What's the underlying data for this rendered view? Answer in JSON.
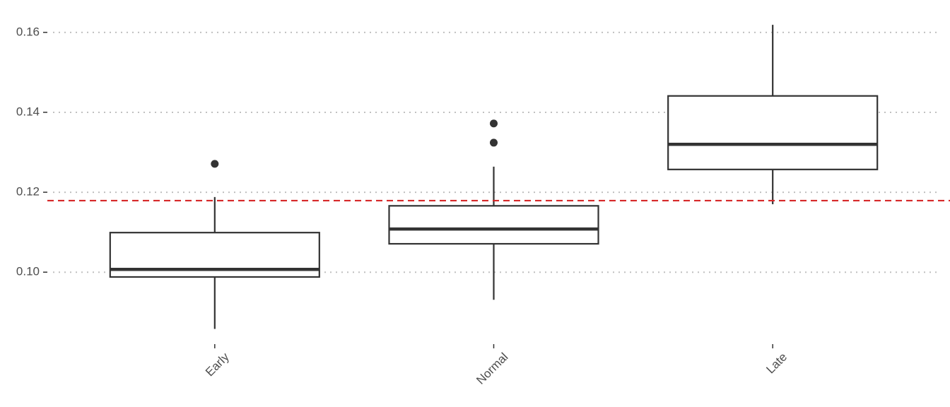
{
  "chart_data": {
    "type": "box",
    "categories": [
      "Early",
      "Normal",
      "Late"
    ],
    "boxes": [
      {
        "min": 0.0858,
        "q1": 0.0988,
        "median": 0.1007,
        "q3": 0.1099,
        "max": 0.1188,
        "outliers": [
          0.1271
        ]
      },
      {
        "min": 0.0931,
        "q1": 0.1071,
        "median": 0.1108,
        "q3": 0.1166,
        "max": 0.1264,
        "outliers": [
          0.1372,
          0.1324
        ]
      },
      {
        "min": 0.117,
        "q1": 0.1257,
        "median": 0.132,
        "q3": 0.1441,
        "max": 0.1619,
        "outliers": []
      }
    ],
    "color": "#333333",
    "reference_line": {
      "value": 0.1179,
      "color": "#d62728"
    },
    "ylim": [
      0.082,
      0.1681
    ],
    "yticks": [
      {
        "value": 0.1,
        "label": "0.10"
      },
      0.12,
      0.14,
      0.16
    ],
    "grid": true
  }
}
